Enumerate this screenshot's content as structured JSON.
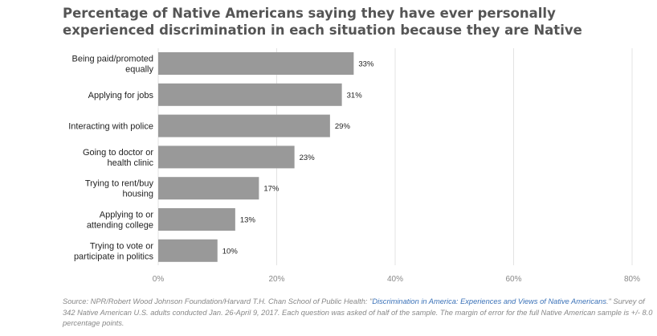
{
  "chart_data": {
    "type": "bar",
    "orientation": "horizontal",
    "title": "Percentage of Native Americans saying they have ever personally experienced discrimination in each situation because they are Native",
    "categories": [
      [
        "Being paid/promoted",
        "equally"
      ],
      [
        "Applying for jobs"
      ],
      [
        "Interacting with police"
      ],
      [
        "Going to doctor or",
        "health clinic"
      ],
      [
        "Trying to rent/buy",
        "housing"
      ],
      [
        "Applying to or",
        "attending college"
      ],
      [
        "Trying to vote or",
        "participate in politics"
      ]
    ],
    "values": [
      33,
      31,
      29,
      23,
      17,
      13,
      10
    ],
    "value_labels": [
      "33%",
      "31%",
      "29%",
      "23%",
      "17%",
      "13%",
      "10%"
    ],
    "xlim": [
      0,
      80
    ],
    "xticks": [
      0,
      20,
      40,
      60,
      80
    ],
    "xtick_labels": [
      "0%",
      "20%",
      "40%",
      "60%",
      "80%"
    ],
    "grid": true,
    "bar_color": "#999999",
    "grid_color": "#e3e3e3"
  },
  "source": {
    "prefix": "Source: NPR/Robert Wood Johnson Foundation/Harvard T.H. Chan School of Public Health: \"",
    "link_text": "Discrimination in America: Experiences and Views of Native Americans",
    "suffix": ".\" Survey of 342 Native American U.S. adults conducted Jan. 26-April 9, 2017. Each question was asked of half of the sample. The margin of error for the full Native American sample is +/- 8.0 percentage points."
  }
}
